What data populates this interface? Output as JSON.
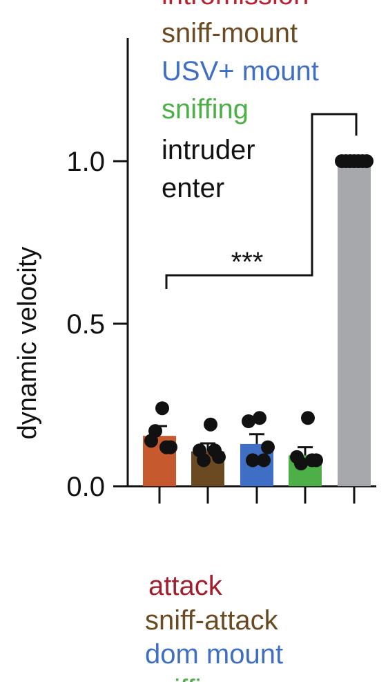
{
  "chart_data": {
    "type": "bar",
    "ylabel": "dynamic velocity",
    "ylim": [
      0,
      1.0
    ],
    "yticks": [
      {
        "value": 0.0,
        "label": "0.0"
      },
      {
        "value": 0.5,
        "label": "0.5"
      },
      {
        "value": 1.0,
        "label": "1.0"
      }
    ],
    "categories": [
      "attack",
      "sniff-attack",
      "dom mount",
      "sniffing",
      "intruder enter"
    ],
    "values": [
      0.155,
      0.107,
      0.13,
      0.095,
      1.0
    ],
    "errors": [
      0.03,
      0.025,
      0.03,
      0.025,
      0.0
    ],
    "points": [
      [
        0.24,
        0.14,
        0.12,
        0.17,
        0.12
      ],
      [
        0.19,
        0.11,
        0.09,
        0.08,
        0.11
      ],
      [
        0.21,
        0.2,
        0.12,
        0.08,
        0.08
      ],
      [
        0.21,
        0.09,
        0.08,
        0.07,
        0.08
      ],
      [
        1.0,
        1.0,
        1.0,
        1.0,
        1.0,
        1.0,
        1.0
      ]
    ],
    "colors": [
      "#c65a2e",
      "#6b4a22",
      "#3f6fc4",
      "#4caf48",
      "#a7a8ab"
    ],
    "significance": {
      "label": "***"
    },
    "legend_top": [
      {
        "text": "intromission",
        "color": "#b5242f"
      },
      {
        "text": "sniff-mount",
        "color": "#6b4a22"
      },
      {
        "text": "USV+ mount",
        "color": "#3f6fc4"
      },
      {
        "text": "sniffing",
        "color": "#4caf48"
      },
      {
        "text": "intruder",
        "color": "#111111"
      },
      {
        "text": "enter",
        "color": "#111111"
      }
    ],
    "legend_bottom": [
      {
        "text": "attack",
        "color": "#a31e2c"
      },
      {
        "text": "sniff-attack",
        "color": "#6b4a22"
      },
      {
        "text": "dom mount",
        "color": "#3f6fc4"
      },
      {
        "text": "sniffing",
        "color": "#4caf48"
      }
    ]
  }
}
